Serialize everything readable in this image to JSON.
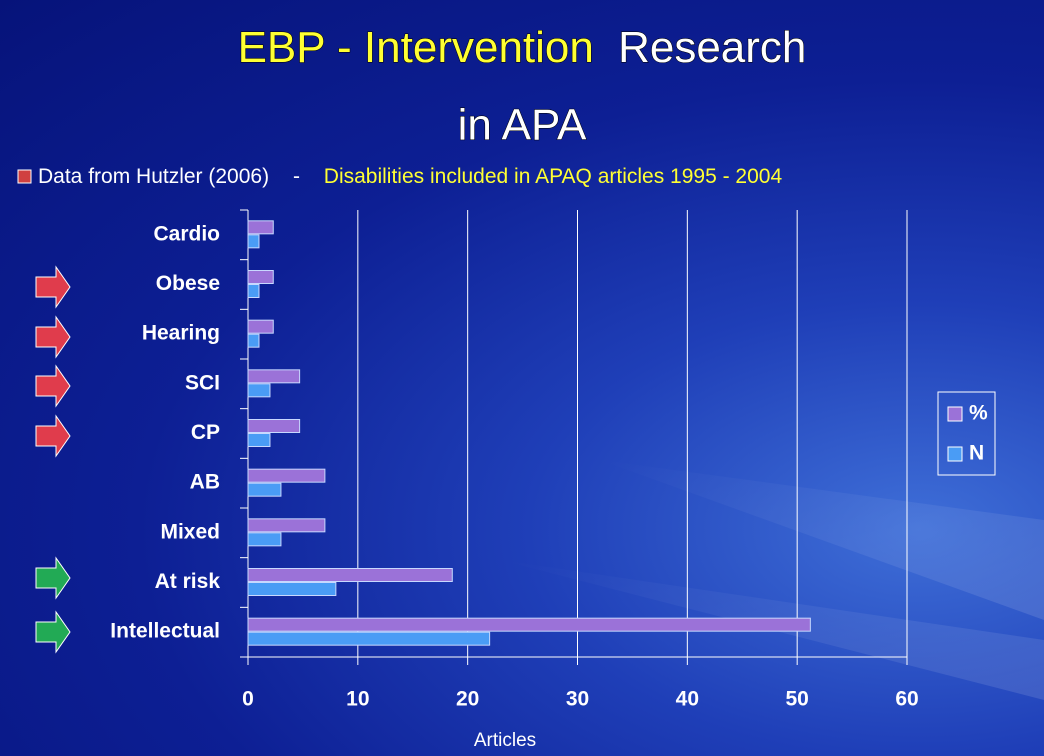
{
  "chart_data": {
    "type": "hbar",
    "title_highlight": "EBP - Intervention",
    "title_rest": "Research",
    "title_line2": "in APA",
    "source": "Data from Hutzler (2006)",
    "separator": "-",
    "subtitle": "Disabilities included in APAQ articles 1995 - 2004",
    "x_label": "Articles",
    "categories": [
      "Cardio",
      "Obese",
      "Hearing",
      "SCI",
      "CP",
      "AB",
      "Mixed",
      "At risk",
      "Intellectual"
    ],
    "series": [
      {
        "name": "%",
        "color": "#9b72d8",
        "values": [
          2.3,
          2.3,
          2.3,
          4.7,
          4.7,
          7.0,
          7.0,
          18.6,
          51.2
        ]
      },
      {
        "name": "N",
        "color": "#4a9cf5",
        "values": [
          1,
          1,
          1,
          2,
          2,
          3,
          3,
          8,
          22
        ]
      }
    ],
    "xlim": [
      0,
      60
    ],
    "xticks": [
      0,
      10,
      20,
      30,
      40,
      50,
      60
    ],
    "grid": true
  }
}
